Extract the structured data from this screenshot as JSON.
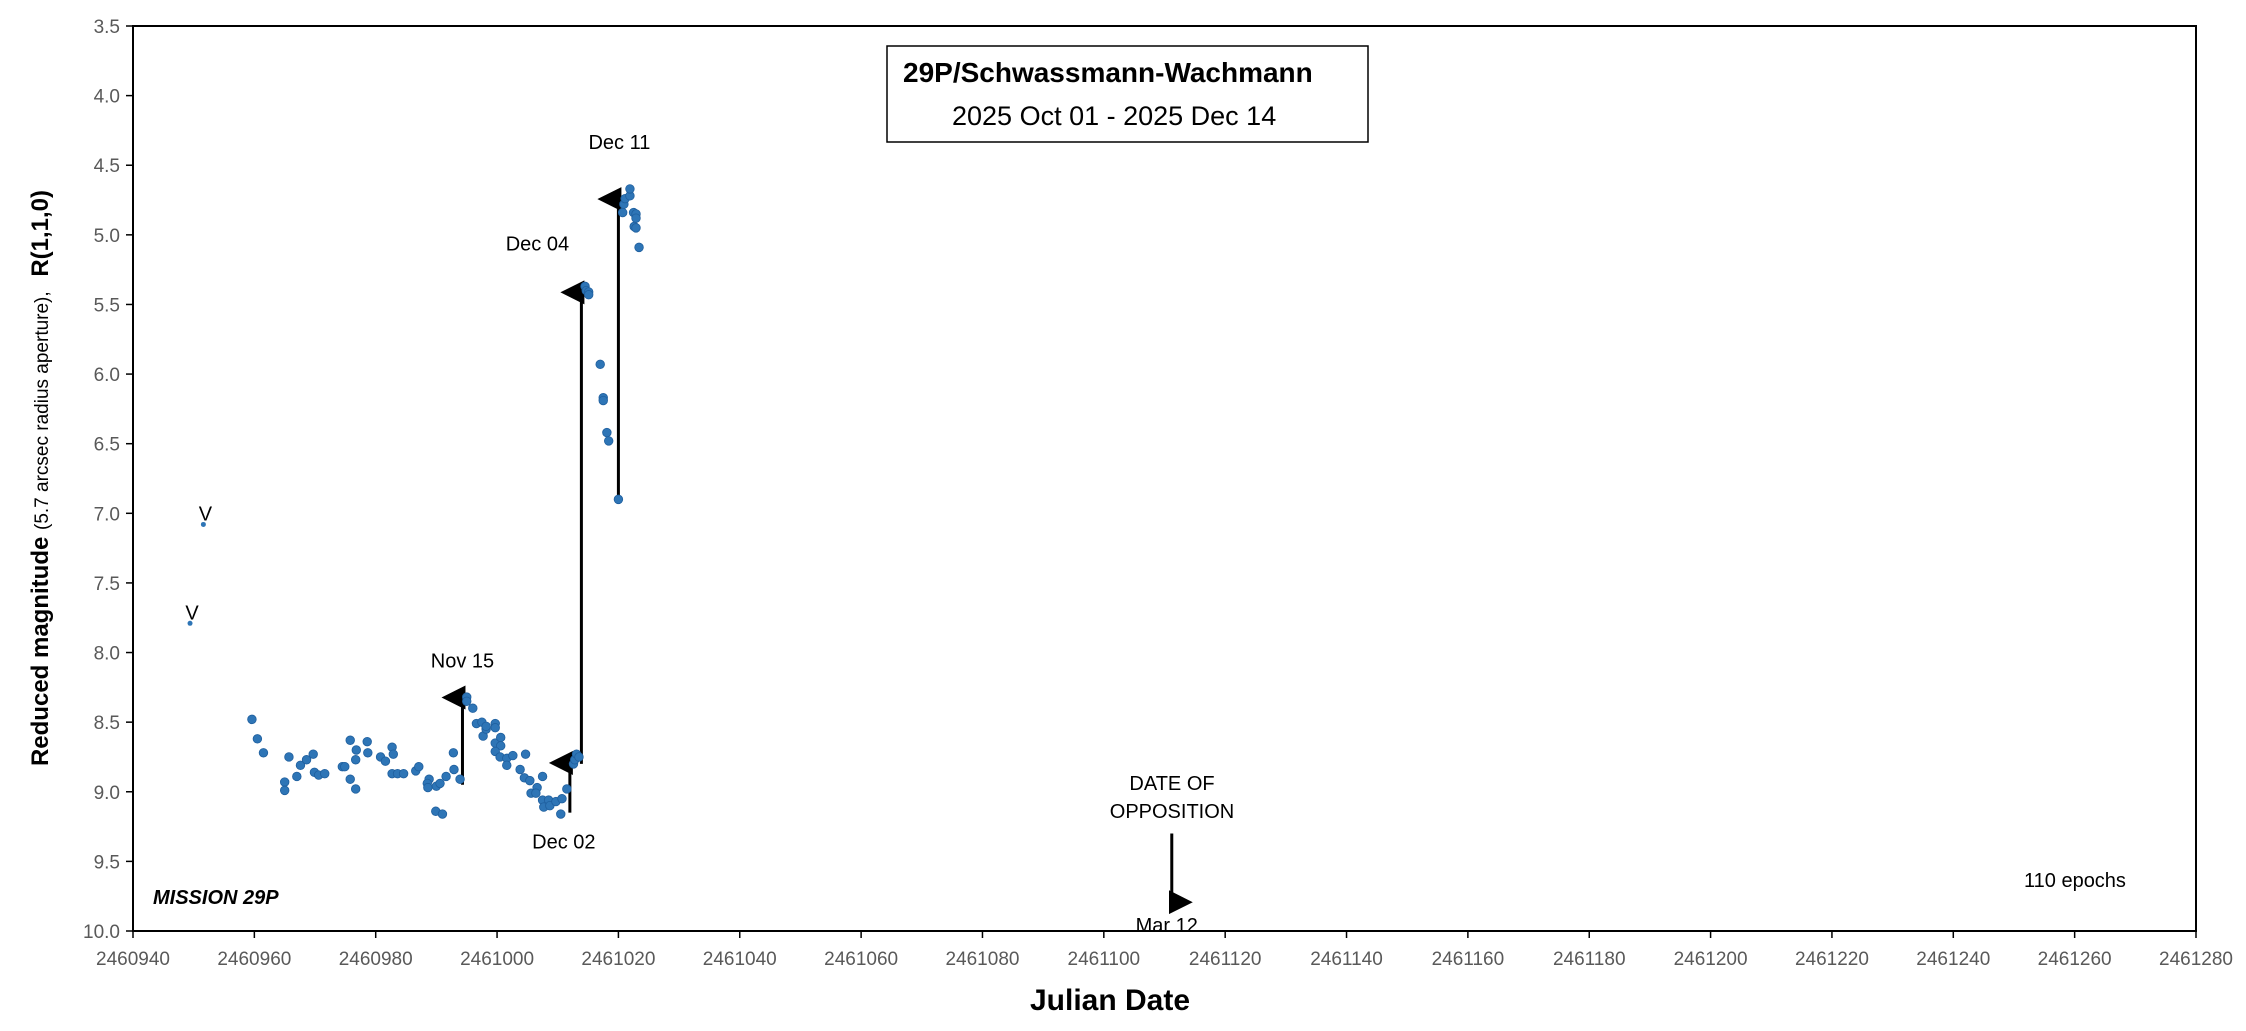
{
  "chart_data": {
    "type": "scatter",
    "title": "29P/Schwassmann-Wachmann",
    "subtitle": "2025 Oct 01 - 2025 Dec 14",
    "xlabel": "Julian Date",
    "ylabel_main": "Reduced magnitude",
    "ylabel_note": "(5.7 arcsec radius aperture),",
    "ylabel_filter": "R(1,1,0)",
    "xlim": [
      2460940,
      2461280
    ],
    "ylim": [
      3.5,
      10.0
    ],
    "y_inverted": true,
    "grid": false,
    "x_ticks": [
      "2460940",
      "2460960",
      "2460980",
      "2461000",
      "2461020",
      "2461040",
      "2461060",
      "2461080",
      "2461100",
      "2461120",
      "2461140",
      "2461160",
      "2461180",
      "2461200",
      "2461220",
      "2461240",
      "2461260",
      "2461280"
    ],
    "y_ticks": [
      "3.5",
      "4.0",
      "4.5",
      "5.0",
      "5.5",
      "6.0",
      "6.5",
      "7.0",
      "7.5",
      "8.0",
      "8.5",
      "9.0",
      "9.5",
      "10.0"
    ],
    "point_color": "#2E75B6",
    "series": [
      {
        "name": "observations",
        "points": [
          [
            2460959.6,
            8.48
          ],
          [
            2460960.5,
            8.62
          ],
          [
            2460961.5,
            8.72
          ],
          [
            2460965.0,
            8.93
          ],
          [
            2460965.0,
            8.99
          ],
          [
            2460965.7,
            8.75
          ],
          [
            2460967.0,
            8.89
          ],
          [
            2460967.6,
            8.81
          ],
          [
            2460968.6,
            8.77
          ],
          [
            2460969.7,
            8.73
          ],
          [
            2460969.9,
            8.86
          ],
          [
            2460970.6,
            8.88
          ],
          [
            2460971.6,
            8.87
          ],
          [
            2460974.5,
            8.82
          ],
          [
            2460974.9,
            8.82
          ],
          [
            2460975.8,
            8.63
          ],
          [
            2460975.8,
            8.91
          ],
          [
            2460976.7,
            8.77
          ],
          [
            2460976.7,
            8.98
          ],
          [
            2460976.8,
            8.7
          ],
          [
            2460978.6,
            8.64
          ],
          [
            2460978.7,
            8.72
          ],
          [
            2460980.8,
            8.75
          ],
          [
            2460981.6,
            8.78
          ],
          [
            2460982.7,
            8.68
          ],
          [
            2460982.9,
            8.73
          ],
          [
            2460982.7,
            8.87
          ],
          [
            2460983.6,
            8.87
          ],
          [
            2460984.6,
            8.87
          ],
          [
            2460986.6,
            8.85
          ],
          [
            2460987.1,
            8.82
          ],
          [
            2460988.8,
            8.91
          ],
          [
            2460988.5,
            8.94
          ],
          [
            2460988.6,
            8.97
          ],
          [
            2460990.0,
            8.96
          ],
          [
            2460990.6,
            8.94
          ],
          [
            2460989.9,
            9.14
          ],
          [
            2460991.0,
            9.16
          ],
          [
            2460991.6,
            8.89
          ],
          [
            2460992.9,
            8.84
          ],
          [
            2460992.8,
            8.72
          ],
          [
            2460993.9,
            8.91
          ],
          [
            2460995.0,
            8.32
          ],
          [
            2460995.0,
            8.35
          ],
          [
            2460996.0,
            8.4
          ],
          [
            2460996.6,
            8.51
          ],
          [
            2460997.5,
            8.5
          ],
          [
            2460997.7,
            8.6
          ],
          [
            2460998.2,
            8.55
          ],
          [
            2460998.2,
            8.53
          ],
          [
            2460999.7,
            8.51
          ],
          [
            2460999.7,
            8.54
          ],
          [
            2460999.7,
            8.65
          ],
          [
            2461000.6,
            8.61
          ],
          [
            2461000.6,
            8.67
          ],
          [
            2460999.7,
            8.71
          ],
          [
            2461000.5,
            8.75
          ],
          [
            2461001.6,
            8.76
          ],
          [
            2461002.6,
            8.74
          ],
          [
            2461001.6,
            8.81
          ],
          [
            2461004.7,
            8.73
          ],
          [
            2461003.8,
            8.84
          ],
          [
            2461004.5,
            8.9
          ],
          [
            2461005.4,
            8.92
          ],
          [
            2461006.6,
            8.97
          ],
          [
            2461005.6,
            9.01
          ],
          [
            2461006.4,
            9.01
          ],
          [
            2461007.5,
            8.89
          ],
          [
            2461007.5,
            9.06
          ],
          [
            2461008.5,
            9.06
          ],
          [
            2461007.7,
            9.11
          ],
          [
            2461008.7,
            9.1
          ],
          [
            2461009.7,
            9.07
          ],
          [
            2461010.7,
            9.05
          ],
          [
            2461010.5,
            9.16
          ],
          [
            2461011.5,
            8.98
          ],
          [
            2461012.6,
            8.8
          ],
          [
            2461012.8,
            8.77
          ],
          [
            2461013.1,
            8.73
          ],
          [
            2461013.5,
            8.75
          ],
          [
            2461014.5,
            5.37
          ],
          [
            2461014.7,
            5.4
          ],
          [
            2461015.1,
            5.41
          ],
          [
            2461015.1,
            5.43
          ],
          [
            2461017.0,
            5.93
          ],
          [
            2461017.5,
            6.17
          ],
          [
            2461017.5,
            6.19
          ],
          [
            2461018.1,
            6.42
          ],
          [
            2461018.4,
            6.48
          ],
          [
            2461020.0,
            6.9
          ],
          [
            2461020.7,
            4.84
          ],
          [
            2461020.9,
            4.78
          ],
          [
            2461021.1,
            4.74
          ],
          [
            2461021.9,
            4.72
          ],
          [
            2461021.9,
            4.67
          ],
          [
            2461022.5,
            4.84
          ],
          [
            2461022.9,
            4.85
          ],
          [
            2461022.9,
            4.88
          ],
          [
            2461022.6,
            4.94
          ],
          [
            2461022.9,
            4.95
          ],
          [
            2461023.4,
            5.09
          ]
        ]
      },
      {
        "name": "visual",
        "marker_label": "V",
        "points": [
          [
            2460949.4,
            7.79
          ],
          [
            2460951.6,
            7.08
          ]
        ]
      }
    ],
    "arrows": [
      {
        "label": "Nov 15",
        "x": 2460994.3,
        "from": 8.95,
        "to": 8.28
      },
      {
        "label": "Dec 02",
        "x": 2461012.0,
        "from": 9.15,
        "to": 8.75
      },
      {
        "label": "Dec 04",
        "x": 2461013.9,
        "from": 8.8,
        "to": 5.37
      },
      {
        "label": "Dec 11",
        "x": 2461020.0,
        "from": 6.88,
        "to": 4.7
      },
      {
        "label": "Mar 12",
        "x": 2461111.2,
        "from": 9.3,
        "to": 9.75
      }
    ],
    "opposition_label_1": "DATE OF",
    "opposition_label_2": "OPPOSITION",
    "mission_label": "MISSION 29P",
    "epochs_label": "110  epochs"
  }
}
